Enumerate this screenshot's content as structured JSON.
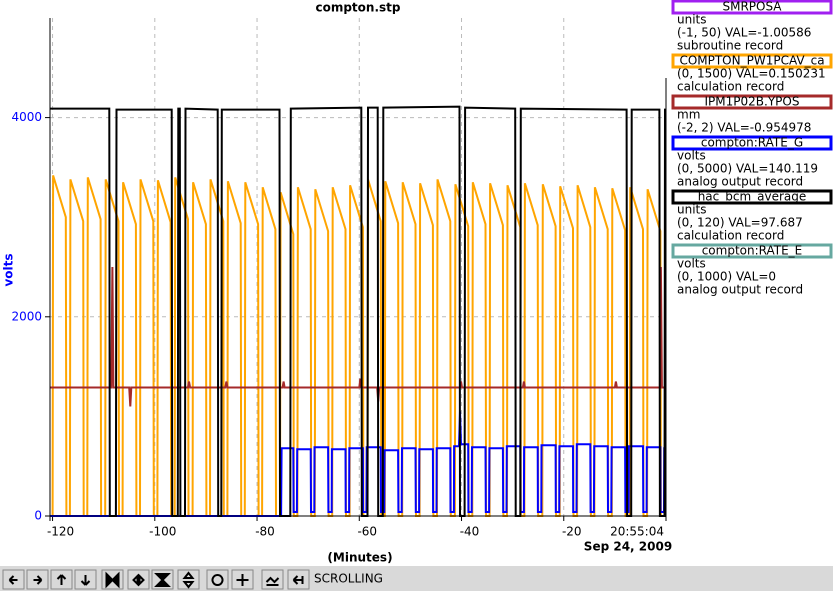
{
  "chart_data": {
    "type": "line",
    "title": "compton.stp",
    "xlabel": "(Minutes)",
    "ylabel": "volts",
    "x_date": "Sep 24, 2009",
    "xlim": [
      -120.5,
      0
    ],
    "xticks": [
      -120,
      -100,
      -80,
      -60,
      -40,
      -20,
      {
        "value": 0,
        "label": "20:55:04"
      }
    ],
    "ylim": [
      0,
      5000
    ],
    "yticks": [
      0,
      2000,
      4000
    ],
    "grid": true,
    "series": [
      {
        "name": "SMRPOSA",
        "color": "#a020f0",
        "units": "units",
        "info": "(-1, 50) VAL=-1.00586",
        "record": "subroutine record",
        "x": [],
        "values": []
      },
      {
        "name": "COMPTON_PW1PCAV_ca",
        "color": "#ffa500",
        "info": "(0, 1500) VAL=0.150231",
        "record": "calculation record",
        "x": [
          -120,
          -119.9,
          -117.4,
          -117.3,
          -116.6,
          -116.5,
          -114,
          -113.9,
          -113.2,
          -113.1,
          -110.6,
          -110.5,
          -109.7,
          -109.6,
          -107.1,
          -107,
          -106.3,
          -106.2,
          -103.7,
          -103.6,
          -102.9,
          -102.8,
          -100.3,
          -100.2,
          -99.5,
          -99.4,
          -96.9,
          -96.8,
          -96.1,
          -96,
          -93.5,
          -93.4,
          -92.6,
          -92.5,
          -90,
          -89.9,
          -89.2,
          -89.1,
          -86.6,
          -86.5,
          -85.8,
          -85.7,
          -83.2,
          -83.1,
          -82.4,
          -82.3,
          -79.8,
          -79.7,
          -79,
          -78.9,
          -76.4,
          -76.3,
          -75.5,
          -75.4,
          -72.9,
          -72.8,
          -72.1,
          -72,
          -69.5,
          -69.4,
          -68.7,
          -68.6,
          -66.1,
          -66,
          -65.3,
          -65.2,
          -62.7,
          -62.6,
          -61.9,
          -61.8,
          -59.3,
          -59.2,
          -58.4,
          -58.3,
          -55.8,
          -55.7,
          -55,
          -54.9,
          -52.4,
          -52.3,
          -51.6,
          -51.5,
          -49,
          -48.9,
          -48.2,
          -48.1,
          -45.6,
          -45.5,
          -44.8,
          -44.7,
          -42.2,
          -42.1,
          -41.3,
          -41.2,
          -38.7,
          -38.6,
          -37.9,
          -37.8,
          -35.3,
          -35.2,
          -34.5,
          -34.4,
          -31.9,
          -31.8,
          -31.1,
          -31,
          -28.5,
          -28.4,
          -27.7,
          -27.6,
          -25.1,
          -25,
          -24.2,
          -24.1,
          -21.6,
          -21.5,
          -20.8,
          -20.7,
          -18.2,
          -18.1,
          -17.4,
          -17.3,
          -14.8,
          -14.7,
          -14,
          -13.9,
          -11.4,
          -11.3,
          -10.6,
          -10.5,
          -8,
          -7.9,
          -7.1,
          -7,
          -4.5,
          -4.4,
          -3.7,
          -3.6,
          -1.1,
          -1
        ],
        "values": [
          0,
          3420,
          3000,
          0,
          0,
          3380,
          2960,
          0,
          0,
          3400,
          2980,
          0,
          0,
          3380,
          2960,
          0,
          0,
          3350,
          2930,
          0,
          0,
          3380,
          2960,
          0,
          0,
          3370,
          2950,
          0,
          0,
          3400,
          2980,
          0,
          0,
          3350,
          2930,
          0,
          0,
          3380,
          2960,
          0,
          0,
          3360,
          2940,
          0,
          0,
          3350,
          2930,
          0,
          0,
          3300,
          2880,
          0,
          0,
          3250,
          2830,
          0,
          0,
          3300,
          2880,
          0,
          0,
          3280,
          2860,
          0,
          0,
          3300,
          2880,
          0,
          0,
          3320,
          2900,
          0,
          0,
          3380,
          2960,
          0,
          0,
          3360,
          2940,
          0,
          0,
          3350,
          2930,
          0,
          0,
          3340,
          2920,
          0,
          0,
          3380,
          2960,
          0,
          0,
          3330,
          2910,
          0,
          0,
          3350,
          2930,
          0,
          0,
          3340,
          2920,
          0,
          0,
          3320,
          2900,
          0,
          0,
          3340,
          2920,
          0,
          0,
          3330,
          2910,
          0,
          0,
          3310,
          2890,
          0,
          0,
          3320,
          2900,
          0,
          0,
          3300,
          2880,
          0,
          0,
          3290,
          2870,
          0,
          0,
          3300,
          2880,
          0,
          0,
          3280,
          2860,
          0
        ]
      },
      {
        "name": "IPM1P02B.YPOS",
        "color": "#a52a2a",
        "units": "mm",
        "info": "(-2, 2) VAL=-0.954978",
        "x": [
          -120.5,
          -108.5,
          -108.3,
          -108.1,
          -105,
          -104.8,
          -104.6,
          -93.5,
          -93.3,
          -93.1,
          -86.2,
          -86,
          -85.8,
          -75,
          -74.8,
          -74.6,
          -60,
          -59.8,
          -59.6,
          -56.5,
          -56.3,
          -56.1,
          -40.3,
          -40.1,
          -39.9,
          -28,
          -27.8,
          -27.6,
          -10,
          -9.8,
          -9.6,
          -1.2,
          -1,
          -0.8,
          0
        ],
        "values": [
          1290,
          1290,
          2500,
          1290,
          1290,
          1100,
          1290,
          1290,
          1350,
          1290,
          1290,
          1350,
          1290,
          1290,
          1350,
          1290,
          1290,
          1380,
          1290,
          1290,
          1150,
          1290,
          1290,
          1350,
          1290,
          1290,
          1350,
          1290,
          1290,
          1350,
          1290,
          1290,
          2500,
          1290,
          1290
        ]
      },
      {
        "name": "compton:RATE_G",
        "color": "#0000ff",
        "units": "volts",
        "info": "(0, 5000) VAL=140.119",
        "record": "analog output record",
        "x": [
          -120.5,
          -75.3,
          -75.2,
          -72.9,
          -72.85,
          -72.2,
          -72.15,
          -69.5,
          -69.45,
          -68.8,
          -68.75,
          -66.1,
          -66.05,
          -65.4,
          -65.35,
          -62.7,
          -62.65,
          -62,
          -61.95,
          -59.3,
          -59.25,
          -58.6,
          -58.55,
          -55.8,
          -55.75,
          -55.1,
          -55.05,
          -52.4,
          -52.35,
          -51.7,
          -51.65,
          -49,
          -48.95,
          -48.3,
          -48.25,
          -45.6,
          -45.55,
          -44.9,
          -44.85,
          -42.2,
          -42.15,
          -41.5,
          -41.45,
          -40.5,
          -40.3,
          -40.1,
          -38.7,
          -38.65,
          -38,
          -37.95,
          -35.3,
          -35.25,
          -34.6,
          -34.55,
          -31.9,
          -31.85,
          -31.2,
          -31.15,
          -28.5,
          -28.45,
          -27.8,
          -27.75,
          -25.1,
          -25.05,
          -24.4,
          -24.35,
          -21.6,
          -21.55,
          -20.9,
          -20.85,
          -18.2,
          -18.15,
          -17.5,
          -17.45,
          -14.8,
          -14.75,
          -14.1,
          -14.05,
          -11.4,
          -11.35,
          -10.7,
          -10.65,
          -8,
          -7.95,
          -7.3,
          -7.25,
          -4.5,
          -4.45,
          -3.8,
          -3.75,
          -1.1,
          -1.05,
          -0.4,
          -0.35,
          0
        ],
        "values": [
          0,
          0,
          680,
          680,
          40,
          40,
          670,
          670,
          40,
          40,
          690,
          690,
          40,
          40,
          670,
          670,
          40,
          40,
          680,
          680,
          40,
          40,
          690,
          690,
          40,
          40,
          660,
          660,
          40,
          40,
          680,
          680,
          40,
          40,
          670,
          670,
          40,
          40,
          680,
          680,
          40,
          40,
          700,
          700,
          1050,
          720,
          720,
          40,
          40,
          690,
          690,
          40,
          40,
          680,
          680,
          40,
          40,
          700,
          700,
          40,
          40,
          690,
          690,
          40,
          40,
          710,
          710,
          40,
          40,
          700,
          700,
          40,
          40,
          720,
          720,
          40,
          40,
          700,
          700,
          40,
          40,
          690,
          690,
          40,
          40,
          700,
          700,
          40,
          40,
          690,
          690,
          40,
          40,
          680,
          680
        ]
      },
      {
        "name": "hac_bcm_average",
        "color": "#000000",
        "units": "units",
        "info": "(0, 120) VAL=97.687",
        "record": "calculation record",
        "x": [
          -120.5,
          -108.9,
          -108.8,
          -107.6,
          -107.5,
          -96.7,
          -96.6,
          -95.5,
          -95.4,
          -95.1,
          -95,
          -94.1,
          -94,
          -87.7,
          -87.6,
          -87,
          -86.9,
          -75.6,
          -75.5,
          -73.5,
          -73.4,
          -59.6,
          -59.5,
          -58.4,
          -58.3,
          -56.4,
          -56.3,
          -55.4,
          -55.3,
          -40.4,
          -40.3,
          -39.4,
          -39.3,
          -29.5,
          -29.4,
          -28.5,
          -28.4,
          -7.7,
          -7.6,
          -6.8,
          -6.7,
          -1.3,
          -1.2,
          -0.3,
          -0.2,
          0
        ],
        "values": [
          4090,
          4090,
          0,
          0,
          4080,
          4080,
          0,
          0,
          4090,
          4090,
          0,
          0,
          4090,
          4080,
          0,
          0,
          4080,
          4080,
          0,
          0,
          4090,
          4100,
          0,
          0,
          4100,
          4100,
          0,
          0,
          4100,
          4110,
          0,
          0,
          4100,
          4090,
          0,
          0,
          4090,
          4080,
          0,
          0,
          4080,
          4080,
          0,
          0,
          4080,
          4080
        ]
      },
      {
        "name": "compton:RATE_E",
        "color": "#66a8a0",
        "units": "volts",
        "info": "(0, 1000) VAL=0",
        "record": "analog output record",
        "x": [],
        "values": []
      }
    ]
  },
  "toolbar": {
    "status": "SCROLLING"
  }
}
